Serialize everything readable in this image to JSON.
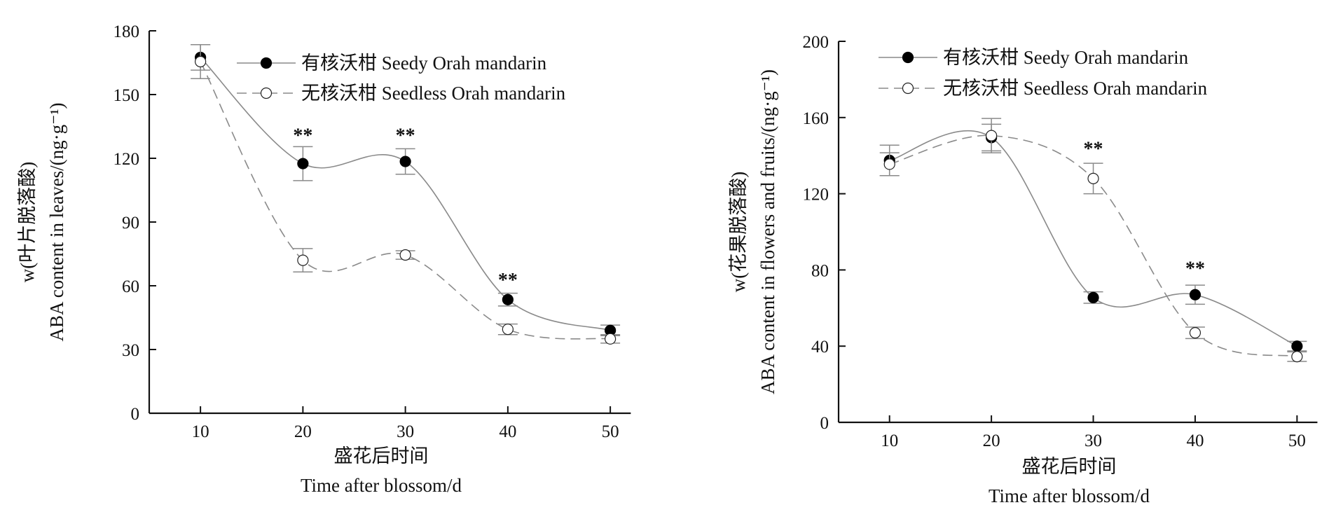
{
  "chart_data": [
    {
      "type": "line",
      "panel": "leaves",
      "ylabel_line1": "w(叶片脱落酸)",
      "ylabel_line2": "ABA content in leaves/(ng·g⁻¹)",
      "xlabel_line1": "盛花后时间",
      "xlabel_line2": "Time after blossom/d",
      "x": [
        10,
        20,
        30,
        40,
        50
      ],
      "xlim": [
        5,
        53
      ],
      "ylim": [
        0,
        180
      ],
      "yticks": [
        0,
        30,
        60,
        90,
        120,
        150,
        180
      ],
      "xticks": [
        10,
        20,
        30,
        40,
        50
      ],
      "legend_position": "top-right",
      "series": [
        {
          "name": "有核沃柑 Seedy Orah mandarin",
          "marker": "filled",
          "values": [
            167.5,
            117.5,
            118.5,
            53.5,
            39
          ],
          "errors": [
            6,
            8,
            6,
            3,
            2.5
          ]
        },
        {
          "name": "无核沃柑 Seedless Orah mandarin",
          "marker": "open",
          "values": [
            165.5,
            72,
            74.5,
            39.5,
            35
          ],
          "errors": [
            8,
            5.5,
            2,
            2.5,
            2
          ]
        }
      ],
      "annotations": [
        {
          "x": 20,
          "y": 131,
          "text": "**"
        },
        {
          "x": 30,
          "y": 131,
          "text": "**"
        },
        {
          "x": 40,
          "y": 63,
          "text": "**"
        }
      ]
    },
    {
      "type": "line",
      "panel": "flowers-and-fruits",
      "ylabel_line1": "w(花果脱落酸)",
      "ylabel_line2": "ABA content in flowers and fruits/(ng·g⁻¹)",
      "xlabel_line1": "盛花后时间",
      "xlabel_line2": "Time after blossom/d",
      "x": [
        10,
        20,
        30,
        40,
        50
      ],
      "xlim": [
        5,
        53
      ],
      "ylim": [
        0,
        200
      ],
      "yticks": [
        0,
        40,
        80,
        120,
        160,
        200
      ],
      "xticks": [
        10,
        20,
        30,
        40,
        50
      ],
      "legend_position": "top-right",
      "series": [
        {
          "name": "有核沃柑 Seedy Orah mandarin",
          "marker": "filled",
          "values": [
            137.5,
            149.5,
            65.5,
            67,
            40
          ],
          "errors": [
            8,
            7,
            3,
            5,
            2.5
          ]
        },
        {
          "name": "无核沃柑 Seedless Orah mandarin",
          "marker": "open",
          "values": [
            135.5,
            150.5,
            128,
            47,
            34.5
          ],
          "errors": [
            6,
            9,
            8,
            3,
            2.5
          ]
        }
      ],
      "annotations": [
        {
          "x": 30,
          "y": 144,
          "text": "**"
        },
        {
          "x": 40,
          "y": 81,
          "text": "**"
        }
      ]
    }
  ]
}
